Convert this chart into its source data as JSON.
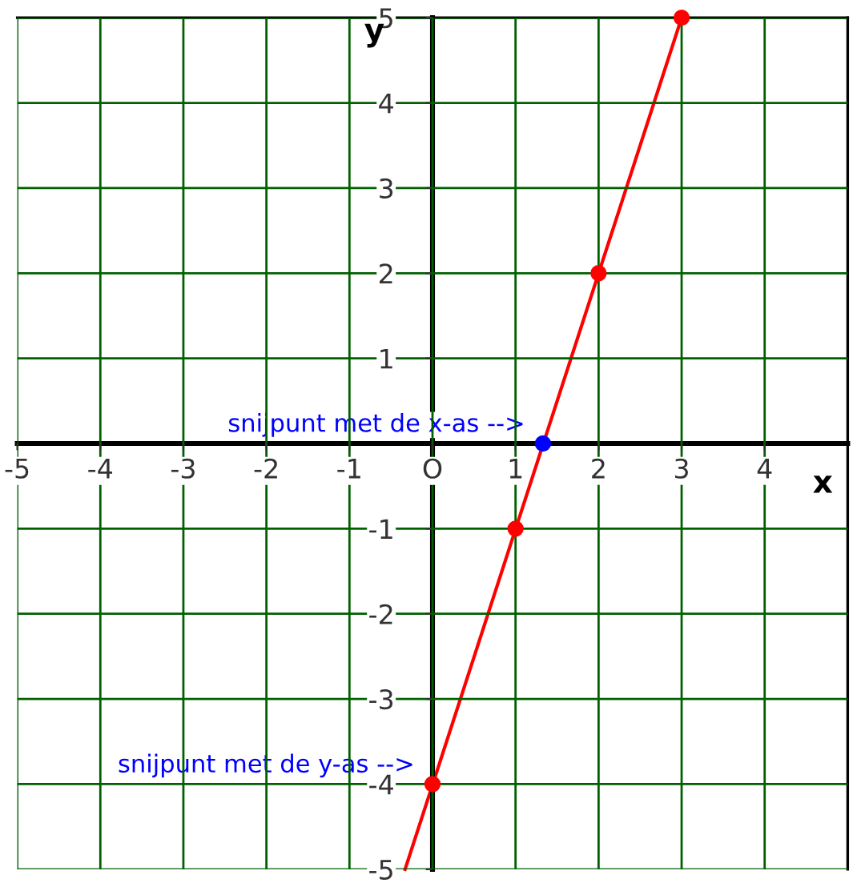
{
  "chart_data": {
    "type": "line",
    "xlabel": "x",
    "ylabel": "y",
    "xlim": [
      -5,
      5
    ],
    "ylim": [
      -5,
      5
    ],
    "xticks": [
      -5,
      -4,
      -3,
      -2,
      -1,
      {
        "value": 0,
        "label": "O"
      },
      1,
      2,
      3,
      4
    ],
    "yticks": [
      -5,
      -4,
      -3,
      -2,
      -1,
      1,
      2,
      3,
      4,
      5
    ],
    "grid": true,
    "series": [
      {
        "type": "line",
        "color": "#ff0000",
        "x": [
          -0.33,
          3
        ],
        "values": [
          -5,
          5
        ],
        "marker": "none"
      },
      {
        "type": "scatter",
        "color": "#ff0000",
        "x": [
          0,
          1,
          2,
          3
        ],
        "values": [
          -4,
          -1,
          2,
          5
        ],
        "marker": "circle"
      },
      {
        "type": "scatter",
        "color": "#0000ff",
        "x": [
          1.33
        ],
        "values": [
          0
        ],
        "marker": "circle"
      }
    ],
    "annotations": [
      {
        "text": "snijpunt met de x-as -->",
        "x": 1.33,
        "y": 0
      },
      {
        "text": "snijpunt met de y-as -->",
        "x": 0,
        "y": -4
      }
    ]
  }
}
